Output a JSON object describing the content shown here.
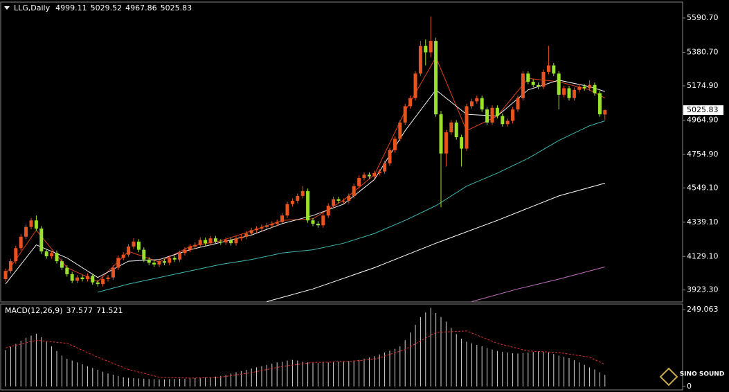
{
  "chart_data": [
    {
      "type": "candlestick",
      "title": "LLG,Daily",
      "open": [
        3990,
        4040,
        4100,
        4180,
        4250,
        4310,
        4350,
        4300,
        4160,
        4130,
        4150,
        4100,
        4060,
        4020,
        3980,
        4000,
        3990,
        4010,
        3970,
        3960,
        3990,
        4000,
        4060,
        4120,
        4140,
        4190,
        4220,
        4170,
        4110,
        4090,
        4080,
        4100,
        4090,
        4120,
        4110,
        4150,
        4170,
        4190,
        4200,
        4230,
        4210,
        4240,
        4220,
        4215,
        4230,
        4210,
        4240,
        4250,
        4270,
        4290,
        4300,
        4310,
        4320,
        4330,
        4340,
        4380,
        4450,
        4470,
        4500,
        4530,
        4350,
        4330,
        4320,
        4380,
        4440,
        4480,
        4470,
        4470,
        4500,
        4560,
        4610,
        4630,
        4620,
        4640,
        4650,
        4700,
        4780,
        4850,
        4950,
        5050,
        5100,
        5250,
        5420,
        5380,
        5450,
        5000,
        4760,
        4890,
        4950,
        4860,
        4790,
        5050,
        5080,
        5100,
        5030,
        4950,
        5040,
        4990,
        4940,
        4960,
        5030,
        5100,
        5250,
        5200,
        5180,
        5170,
        5260,
        5300,
        5250,
        5120,
        5160,
        5100,
        5150,
        5170,
        5160,
        5180,
        5130,
        4999.11
      ],
      "high": [
        4055,
        4115,
        4195,
        4265,
        4325,
        4365,
        4380,
        4315,
        4175,
        4165,
        4165,
        4115,
        4075,
        4035,
        4015,
        4015,
        4025,
        4025,
        3985,
        4005,
        4015,
        4075,
        4135,
        4155,
        4205,
        4240,
        4235,
        4185,
        4125,
        4105,
        4115,
        4115,
        4135,
        4135,
        4165,
        4185,
        4205,
        4215,
        4245,
        4245,
        4255,
        4255,
        4235,
        4245,
        4245,
        4255,
        4265,
        4285,
        4305,
        4315,
        4325,
        4335,
        4345,
        4355,
        4395,
        4465,
        4485,
        4515,
        4560,
        4545,
        4365,
        4345,
        4395,
        4455,
        4495,
        4495,
        4485,
        4515,
        4575,
        4625,
        4645,
        4645,
        4655,
        4665,
        4715,
        4795,
        4865,
        4965,
        5065,
        5115,
        5265,
        5450,
        5460,
        5600,
        5470,
        5020,
        4905,
        4965,
        4965,
        4875,
        5065,
        5095,
        5115,
        5115,
        5045,
        5055,
        5055,
        5005,
        4975,
        5045,
        5115,
        5265,
        5265,
        5215,
        5195,
        5275,
        5420,
        5315,
        5265,
        5175,
        5175,
        5165,
        5185,
        5185,
        5210,
        5195,
        5145,
        5029.52
      ],
      "low": [
        3975,
        4025,
        4085,
        4165,
        4235,
        4295,
        4285,
        4145,
        4115,
        4115,
        4085,
        4045,
        4005,
        3965,
        3965,
        3975,
        3975,
        3955,
        3945,
        3945,
        3975,
        3985,
        4045,
        4105,
        4125,
        4175,
        4155,
        4095,
        4075,
        4065,
        4065,
        4075,
        4075,
        4095,
        4095,
        4135,
        4155,
        4175,
        4185,
        4195,
        4195,
        4205,
        4200,
        4200,
        4195,
        4195,
        4225,
        4235,
        4255,
        4275,
        4285,
        4295,
        4305,
        4315,
        4325,
        4365,
        4435,
        4455,
        4485,
        4335,
        4315,
        4305,
        4305,
        4365,
        4425,
        4455,
        4455,
        4455,
        4485,
        4545,
        4595,
        4605,
        4605,
        4625,
        4635,
        4685,
        4765,
        4835,
        4935,
        5035,
        5085,
        5235,
        5300,
        5350,
        4985,
        4430,
        4680,
        4875,
        4845,
        4680,
        4775,
        5035,
        5065,
        5015,
        4935,
        4935,
        4975,
        4925,
        4925,
        4945,
        5015,
        5085,
        5185,
        5165,
        5155,
        5155,
        5245,
        5235,
        5030,
        5105,
        5085,
        5085,
        5135,
        5145,
        5145,
        5115,
        4985,
        4967.86
      ],
      "close": [
        4040,
        4100,
        4180,
        4250,
        4310,
        4350,
        4300,
        4160,
        4130,
        4150,
        4100,
        4060,
        4020,
        3980,
        4000,
        3990,
        4010,
        3970,
        3960,
        3990,
        4000,
        4060,
        4120,
        4140,
        4190,
        4220,
        4170,
        4110,
        4090,
        4080,
        4100,
        4090,
        4120,
        4110,
        4150,
        4170,
        4190,
        4200,
        4230,
        4210,
        4240,
        4220,
        4215,
        4230,
        4210,
        4240,
        4250,
        4270,
        4290,
        4300,
        4310,
        4320,
        4330,
        4340,
        4380,
        4450,
        4470,
        4500,
        4530,
        4350,
        4330,
        4320,
        4380,
        4440,
        4480,
        4470,
        4470,
        4500,
        4560,
        4610,
        4630,
        4620,
        4640,
        4650,
        4700,
        4780,
        4850,
        4950,
        5050,
        5100,
        5250,
        5420,
        5380,
        5450,
        5000,
        4760,
        4890,
        4950,
        4860,
        4790,
        5050,
        5080,
        5100,
        5030,
        4950,
        5040,
        4990,
        4940,
        4960,
        5030,
        5100,
        5250,
        5200,
        5180,
        5170,
        5260,
        5300,
        5250,
        5120,
        5160,
        5100,
        5150,
        5170,
        5160,
        5180,
        5130,
        5000,
        5025.83
      ],
      "up_color": "#e8531f",
      "down_color": "#9be32a",
      "lines": [
        {
          "color": "#e0401c",
          "x": [
            0,
            6,
            12,
            18,
            24,
            30,
            36,
            42,
            48,
            54,
            60,
            66,
            72,
            78,
            84,
            90,
            96,
            102,
            108,
            114,
            117
          ],
          "values": [
            4020,
            4290,
            4060,
            3975,
            4160,
            4095,
            4190,
            4225,
            4285,
            4350,
            4360,
            4475,
            4630,
            5020,
            5350,
            4900,
            4990,
            5220,
            5200,
            5150,
            5100
          ]
        },
        {
          "color": "#f0f0f0",
          "x": [
            0,
            6,
            12,
            18,
            24,
            30,
            36,
            42,
            48,
            54,
            60,
            66,
            72,
            78,
            84,
            90,
            96,
            102,
            108,
            114,
            117
          ],
          "values": [
            3960,
            4200,
            4120,
            4000,
            4100,
            4110,
            4170,
            4215,
            4260,
            4330,
            4380,
            4450,
            4600,
            4900,
            5150,
            5000,
            4990,
            5150,
            5210,
            5170,
            5140
          ]
        },
        {
          "color": "#3fb8b0",
          "x": [
            18,
            24,
            30,
            36,
            42,
            48,
            54,
            60,
            66,
            72,
            78,
            84,
            90,
            96,
            102,
            108,
            114,
            117
          ],
          "values": [
            3910,
            3960,
            4000,
            4040,
            4080,
            4110,
            4150,
            4170,
            4210,
            4270,
            4350,
            4440,
            4560,
            4640,
            4730,
            4840,
            4930,
            4960
          ]
        },
        {
          "color": "#ffffff",
          "x": [
            51,
            60,
            72,
            84,
            96,
            108,
            117
          ],
          "values": [
            3852,
            3930,
            4060,
            4210,
            4350,
            4500,
            4578
          ]
        },
        {
          "color": "#c070c0",
          "x": [
            91,
            100,
            108,
            117
          ],
          "values": [
            3852,
            3930,
            3990,
            4065
          ]
        }
      ],
      "ylim": [
        3850,
        5684
      ],
      "yticks": [
        {
          "value": 5590.7,
          "label": "5590.70"
        },
        {
          "value": 5380.7,
          "label": "5380.70"
        },
        {
          "value": 5174.9,
          "label": "5174.90"
        },
        {
          "value": 4964.9,
          "label": "4964.90"
        },
        {
          "value": 4754.9,
          "label": "4754.90"
        },
        {
          "value": 4549.1,
          "label": "4549.10"
        },
        {
          "value": 4339.1,
          "label": "4339.10"
        },
        {
          "value": 4129.1,
          "label": "4129.10"
        },
        {
          "value": 3923.3,
          "label": "3923.30"
        }
      ]
    },
    {
      "type": "macd",
      "title": "MACD(12,26,9)",
      "values": [
        118,
        128,
        138,
        148,
        158,
        165,
        171,
        160,
        145,
        130,
        115,
        100,
        90,
        84,
        78,
        72,
        66,
        60,
        54,
        48,
        42,
        38,
        34,
        30,
        28,
        27,
        26,
        25,
        24,
        24,
        23,
        23,
        24,
        24,
        25,
        25,
        26,
        27,
        28,
        29,
        30,
        32,
        34,
        38,
        42,
        46,
        50,
        54,
        58,
        62,
        66,
        70,
        74,
        78,
        80,
        84,
        86,
        84,
        80,
        78,
        76,
        76,
        78,
        78,
        80,
        80,
        82,
        82,
        84,
        86,
        90,
        94,
        98,
        104,
        110,
        116,
        122,
        130,
        150,
        175,
        200,
        225,
        240,
        255,
        238,
        225,
        210,
        190,
        170,
        155,
        145,
        140,
        135,
        130,
        125,
        120,
        115,
        112,
        110,
        108,
        107,
        108,
        110,
        112,
        113,
        112,
        110,
        105,
        100,
        96,
        92,
        85,
        78,
        70,
        62,
        55,
        46,
        37.577
      ],
      "color": "#d8d8d8",
      "signal": {
        "color": "#e03030",
        "x": [
          0,
          6,
          12,
          18,
          24,
          30,
          36,
          42,
          48,
          54,
          60,
          66,
          72,
          78,
          84,
          90,
          96,
          102,
          108,
          114,
          117
        ],
        "values": [
          125,
          150,
          140,
          95,
          55,
          30,
          27,
          30,
          45,
          65,
          78,
          80,
          88,
          120,
          175,
          180,
          140,
          115,
          110,
          95,
          71.521
        ]
      },
      "ylim": [
        0,
        265
      ],
      "yticks": [
        {
          "value": 249.063,
          "label": "249.063"
        },
        0
      ]
    }
  ],
  "watermark": "SINO SOUND"
}
